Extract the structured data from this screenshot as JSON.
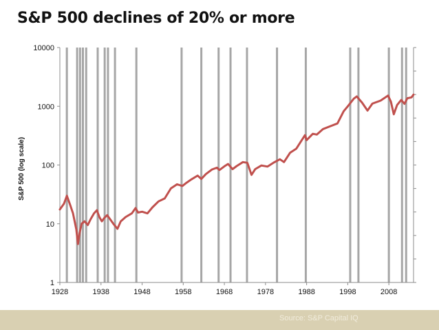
{
  "title": "S&P 500 declines of 20% or more",
  "source": "Source: S&P Capital IQ",
  "colors": {
    "series": "#c0504d",
    "decline_bars": "#a6a6a6",
    "axis": "#8c8c8c",
    "footer": "#d9d0b2"
  },
  "chart_data": {
    "type": "line",
    "title": "S&P 500 declines of 20% or more",
    "ylabel": "S&P 500 (log scale)",
    "xlabel": "",
    "yscale": "log",
    "ylim": [
      1,
      10000
    ],
    "xlim": [
      1928,
      2014
    ],
    "yticks": [
      1,
      10,
      100,
      1000,
      10000
    ],
    "ytick_labels": [
      "1",
      "10",
      "100",
      "1000",
      "10000"
    ],
    "xticks": [
      1928,
      1938,
      1948,
      1958,
      1968,
      1978,
      1988,
      1998,
      2008
    ],
    "xtick_labels": [
      "1928",
      "1938",
      "1948",
      "1958",
      "1968",
      "1978",
      "1988",
      "1998",
      "2008"
    ],
    "decline_years": [
      1929.7,
      1932.2,
      1932.9,
      1933.6,
      1934.4,
      1937.2,
      1938.9,
      1939.7,
      1941.4,
      1946.6,
      1957.6,
      1962.4,
      1966.6,
      1969.5,
      1973.5,
      1980.8,
      1987.8,
      1998.6,
      2000.6,
      2008.0,
      2011.2,
      2012.2
    ],
    "series": [
      {
        "name": "S&P 500",
        "x": [
          1928,
          1929,
          1929.7,
          1930.5,
          1931.2,
          1932.0,
          1932.4,
          1932.8,
          1933.3,
          1934.0,
          1934.8,
          1935.5,
          1936.3,
          1937.0,
          1937.6,
          1938.2,
          1938.8,
          1939.5,
          1940.2,
          1941.0,
          1942.0,
          1942.8,
          1944.0,
          1945.5,
          1946.4,
          1947.0,
          1948.0,
          1949.3,
          1950.5,
          1952.0,
          1953.5,
          1955.0,
          1956.5,
          1957.8,
          1958.8,
          1960.0,
          1961.5,
          1962.4,
          1963.5,
          1965.0,
          1966.2,
          1966.8,
          1968.0,
          1968.9,
          1970.0,
          1971.0,
          1972.5,
          1973.6,
          1974.6,
          1975.5,
          1977.0,
          1978.5,
          1980.0,
          1981.5,
          1982.5,
          1984.0,
          1985.5,
          1987.6,
          1988.0,
          1989.5,
          1990.5,
          1992.0,
          1994.0,
          1995.5,
          1997.0,
          1998.0,
          1999.5,
          2000.2,
          2001.5,
          2002.8,
          2004.0,
          2006.0,
          2007.8,
          2008.5,
          2009.2,
          2010.0,
          2011.0,
          2011.8,
          2012.5,
          2013.5,
          2014.0
        ],
        "values": [
          17.5,
          22,
          30,
          21,
          15,
          8,
          4.5,
          7,
          10,
          11,
          9.5,
          12,
          15,
          17,
          13,
          11,
          12.5,
          14,
          12,
          10,
          8.2,
          11,
          13,
          15,
          18.5,
          15.5,
          16,
          15,
          19,
          24,
          27,
          40,
          47,
          44,
          50,
          57,
          66,
          58,
          70,
          84,
          90,
          82,
          95,
          104,
          85,
          96,
          112,
          109,
          68,
          85,
          98,
          94,
          110,
          125,
          112,
          162,
          190,
          322,
          265,
          340,
          330,
          410,
          465,
          510,
          820,
          1000,
          1350,
          1470,
          1150,
          845,
          1110,
          1250,
          1520,
          1200,
          730,
          1050,
          1280,
          1100,
          1370,
          1420,
          1580
        ]
      }
    ]
  }
}
